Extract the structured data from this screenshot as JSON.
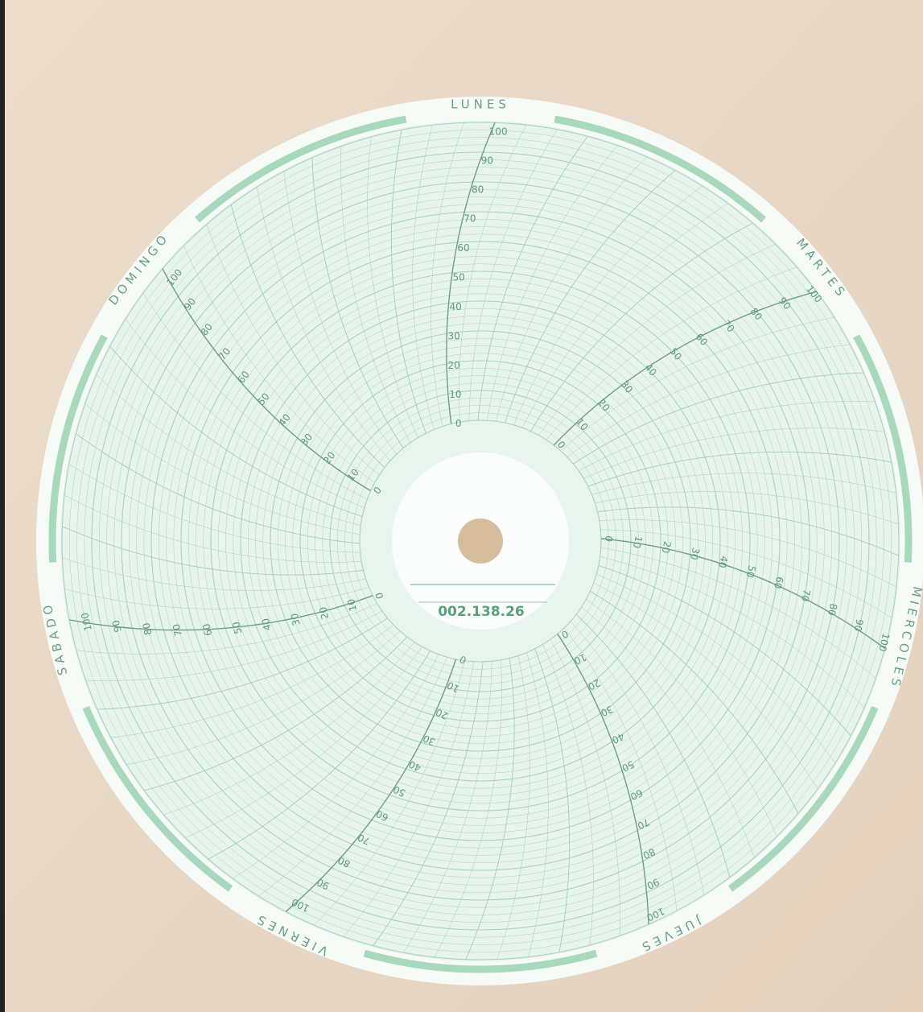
{
  "chart_paper": {
    "serial": "002.138.26",
    "days": [
      "LUNES",
      "MARTES",
      "MIERCOLES",
      "JUEVES",
      "VIERNES",
      "SABADO",
      "DOMINGO"
    ],
    "scale": [
      0,
      10,
      20,
      30,
      40,
      50,
      60,
      70,
      80,
      90,
      100
    ]
  }
}
